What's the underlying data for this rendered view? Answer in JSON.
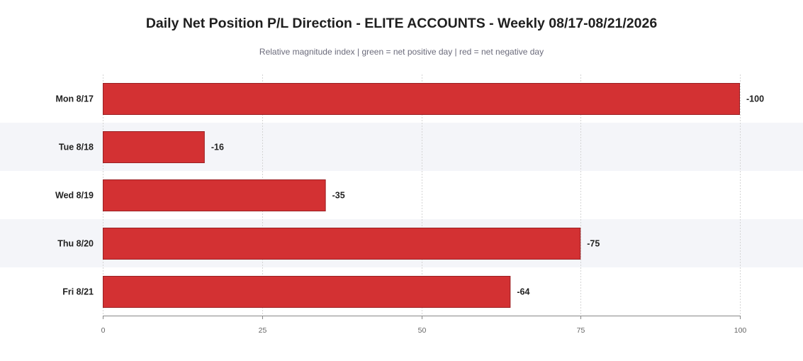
{
  "title": "Daily Net Position P/L Direction - ELITE ACCOUNTS - Weekly 08/17-08/21/2026",
  "subtitle": "Relative magnitude index  |  green = net positive day  |  red = net negative day",
  "colors": {
    "negative": "#d33133",
    "positive": "#2e9e4f",
    "band": "#f4f5f9",
    "grid": "#d4d4d4"
  },
  "chart_data": {
    "type": "bar",
    "orientation": "horizontal",
    "categories": [
      "Mon 8/17",
      "Tue 8/18",
      "Wed 8/19",
      "Thu 8/20",
      "Fri 8/21"
    ],
    "values": [
      100,
      16,
      35,
      75,
      64
    ],
    "labels": [
      "-100",
      "-16",
      "-35",
      "-75",
      "-64"
    ],
    "direction": [
      "negative",
      "negative",
      "negative",
      "negative",
      "negative"
    ],
    "xlim": [
      0,
      100
    ],
    "xticks": [
      "0",
      "25",
      "50",
      "75",
      "100"
    ],
    "xlabel": "",
    "ylabel": "",
    "grid": true,
    "legend": "none"
  }
}
